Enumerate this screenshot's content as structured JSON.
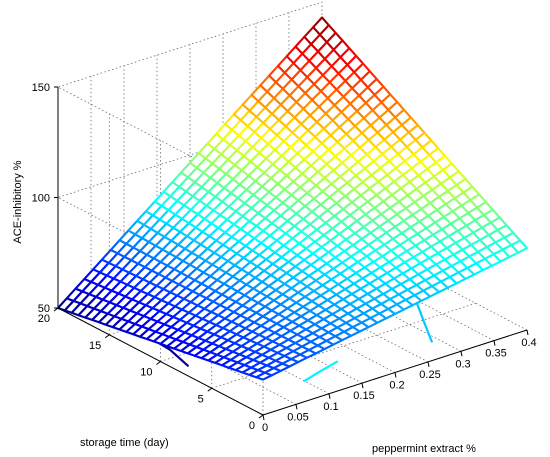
{
  "chart_data": {
    "type": "surface3d",
    "title": "",
    "xlabel": "peppermint extract %",
    "ylabel": "storage time (day)",
    "zlabel": "ACE-inhibitory %",
    "xlim": [
      0,
      0.4
    ],
    "ylim": [
      0,
      20
    ],
    "zlim": [
      50,
      150
    ],
    "x_ticks": [
      "0",
      "0.05",
      "0.1",
      "0.15",
      "0.2",
      "0.25",
      "0.3",
      "0.35",
      "0.4"
    ],
    "y_ticks": [
      "0",
      "5",
      "10",
      "15",
      "20"
    ],
    "z_ticks": [
      "50",
      "100",
      "150"
    ],
    "grid": true,
    "colormap": "jet",
    "surface_corners": [
      {
        "x": 0,
        "y": 20,
        "z": 50
      },
      {
        "x": 0.4,
        "y": 20,
        "z": 143
      },
      {
        "x": 0.4,
        "y": 0,
        "z": 87
      },
      {
        "x": 0,
        "y": 0,
        "z": 66
      }
    ],
    "contour_lines": true
  }
}
